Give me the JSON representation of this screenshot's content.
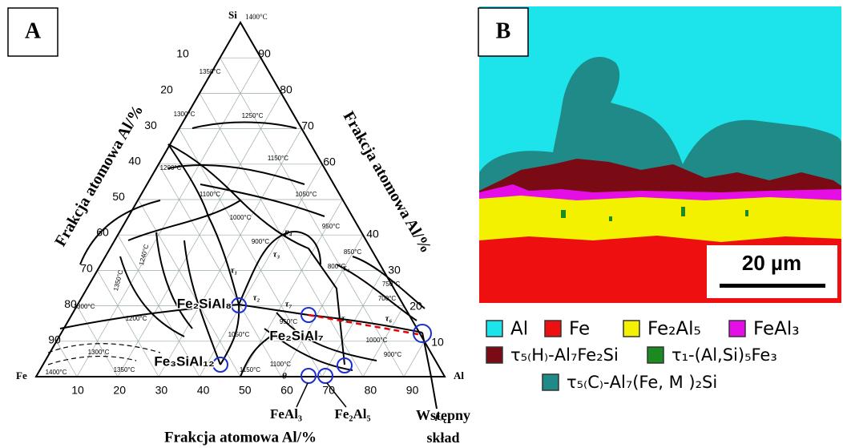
{
  "panel_a": {
    "label": "A",
    "vertices": {
      "si": "Si",
      "si_temp": "1400°C",
      "fe": "Fe",
      "al": "Al"
    },
    "axis_labels": {
      "left": "Frakcja atomowa Al/%",
      "right": "Frakcja atomowa Al/%",
      "bottom": "Frakcja atomowa Al/%"
    },
    "bottom_ticks": [
      "10",
      "20",
      "30",
      "40",
      "50",
      "60",
      "70",
      "80",
      "90"
    ],
    "left_ticks": [
      "10",
      "20",
      "30",
      "40",
      "50",
      "60",
      "70",
      "80",
      "90"
    ],
    "right_ticks": [
      "90",
      "80",
      "70",
      "60",
      "40",
      "30",
      "20",
      "10"
    ],
    "temperatures": [
      "1350°C",
      "1300°C",
      "1250°C",
      "1200°C",
      "1150°C",
      "1100°C",
      "1050°C",
      "1000°C",
      "950°C",
      "900°C",
      "850°C",
      "800°C",
      "750°C",
      "700°C",
      "1350°C",
      "1300°C",
      "1240°C",
      "1200°C",
      "1050°C",
      "1150°C",
      "1100°C",
      "1000°C",
      "900°C",
      "1400°C",
      "1350°C",
      "1300°C",
      "950°C"
    ],
    "phases": [
      "Fe₂SiAl₈",
      "Fe₃SiAl₁₂",
      "Fe₂SiAl₇"
    ],
    "symbols": [
      "τ₁",
      "τ₂",
      "τ₃",
      "τ₄",
      "τ₅",
      "τ₆",
      "τ₇",
      "p₄",
      "p₃",
      "θ"
    ],
    "annotations": {
      "feal3": "FeAl₃",
      "fe2al5": "Fe₂Al₅",
      "initial": [
        "Wstępny",
        "skład"
      ]
    }
  },
  "panel_b": {
    "label": "B",
    "scale_bar": "20 µm",
    "legend": [
      "Al",
      "Fe",
      "Fe₂Al₅",
      "FeAl₃",
      "τ₅₍H₎-Al₇Fe₂Si",
      "τ₁-(Al,Si)₅Fe₃",
      "τ₅₍C₎-Al₇(Fe, M )₂Si"
    ]
  }
}
